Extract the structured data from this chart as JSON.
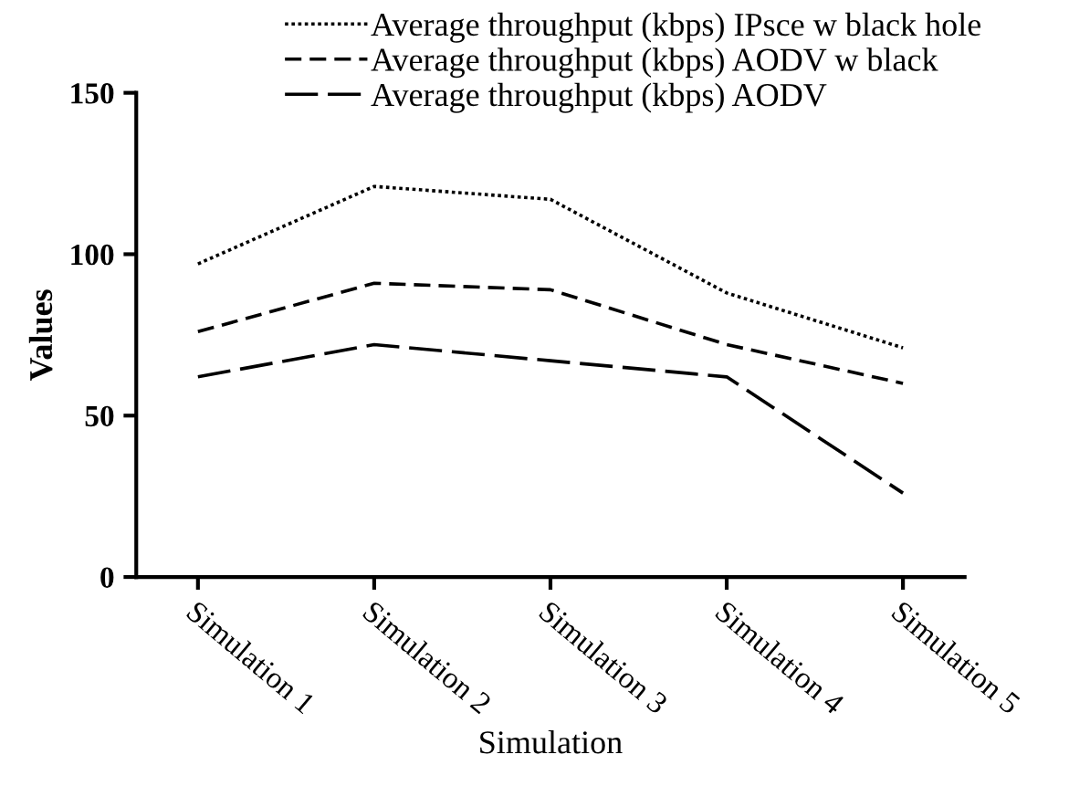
{
  "chart_data": {
    "type": "line",
    "xlabel": "Simulation",
    "ylabel": "Values",
    "categories": [
      "Simulation 1",
      "Simulation 2",
      "Simulation 3",
      "Simulation 4",
      "Simulation 5"
    ],
    "ylim": [
      0,
      150
    ],
    "yticks": [
      0,
      50,
      100,
      150
    ],
    "grid": false,
    "legend": "top",
    "marker": "none",
    "series": [
      {
        "name": "Average throughput (kbps) IPsce w black hole",
        "color": "#000000",
        "line_style": "dotted",
        "values": [
          97,
          121,
          117,
          88,
          71
        ]
      },
      {
        "name": "Average throughput (kbps) AODV w black",
        "color": "#000000",
        "line_style": "dashed",
        "values": [
          76,
          91,
          89,
          72,
          60
        ]
      },
      {
        "name": "Average throughput (kbps) AODV",
        "color": "#000000",
        "line_style": "longdash",
        "values": [
          62,
          72,
          67,
          62,
          26
        ]
      }
    ]
  }
}
